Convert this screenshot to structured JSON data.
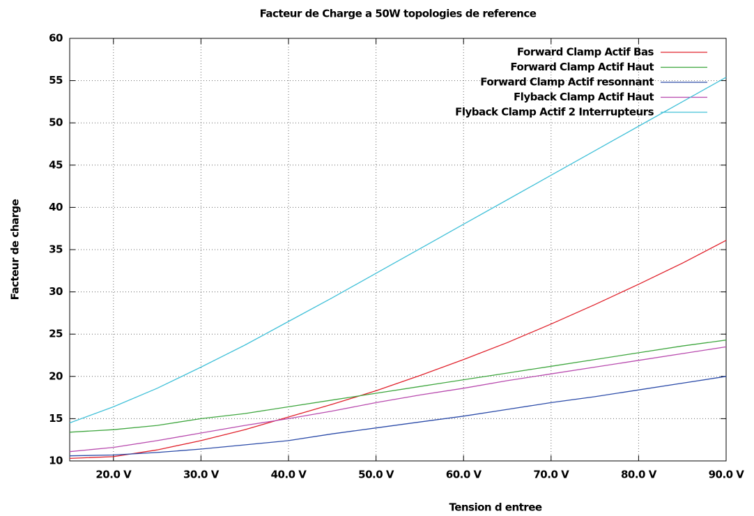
{
  "chart_data": {
    "type": "line",
    "title": "Facteur de Charge a 50W topologies de reference",
    "xlabel": "Tension d entree",
    "ylabel": "Facteur de charge",
    "x": [
      15,
      20,
      25,
      30,
      35,
      40,
      45,
      50,
      55,
      60,
      65,
      70,
      75,
      80,
      85,
      90
    ],
    "series": [
      {
        "name": "Forward Clamp Actif Bas",
        "color": "#e0202a",
        "values": [
          10.3,
          10.5,
          11.3,
          12.4,
          13.7,
          15.2,
          16.7,
          18.3,
          20.1,
          22.0,
          24.0,
          26.2,
          28.5,
          30.9,
          33.4,
          36.1
        ]
      },
      {
        "name": "Forward Clamp Actif Haut",
        "color": "#3ea63e",
        "values": [
          13.4,
          13.7,
          14.2,
          15.0,
          15.6,
          16.4,
          17.2,
          18.0,
          18.8,
          19.6,
          20.4,
          21.2,
          22.0,
          22.8,
          23.6,
          24.3
        ]
      },
      {
        "name": "Forward Clamp Actif resonnant",
        "color": "#2a4aa8",
        "values": [
          10.6,
          10.7,
          11.0,
          11.4,
          11.9,
          12.4,
          13.2,
          13.9,
          14.6,
          15.3,
          16.1,
          16.9,
          17.6,
          18.4,
          19.2,
          20.0
        ]
      },
      {
        "name": "Flyback Clamp Actif Haut",
        "color": "#b84aae",
        "values": [
          11.1,
          11.6,
          12.4,
          13.3,
          14.2,
          15.0,
          15.9,
          16.9,
          17.8,
          18.6,
          19.5,
          20.3,
          21.1,
          21.9,
          22.7,
          23.5
        ]
      },
      {
        "name": "Flyback Clamp Actif 2 Interrupteurs",
        "color": "#40c0d8",
        "values": [
          14.5,
          16.4,
          18.6,
          21.1,
          23.7,
          26.5,
          29.3,
          32.2,
          35.1,
          38.0,
          40.9,
          43.8,
          46.7,
          49.6,
          52.5,
          55.4
        ]
      }
    ],
    "xlim": [
      15,
      90
    ],
    "xticks": [
      {
        "value": 20,
        "label": "20.0 V"
      },
      {
        "value": 30,
        "label": "30.0 V"
      },
      {
        "value": 40,
        "label": "40.0 V"
      },
      {
        "value": 50,
        "label": "50.0 V"
      },
      {
        "value": 60,
        "label": "60.0 V"
      },
      {
        "value": 70,
        "label": "70.0 V"
      },
      {
        "value": 80,
        "label": "80.0 V"
      },
      {
        "value": 90,
        "label": "90.0 V"
      }
    ],
    "ylim": [
      10,
      60
    ],
    "yticks": [
      10,
      15,
      20,
      25,
      30,
      35,
      40,
      45,
      50,
      55,
      60
    ],
    "grid": true,
    "legend": "top right"
  }
}
